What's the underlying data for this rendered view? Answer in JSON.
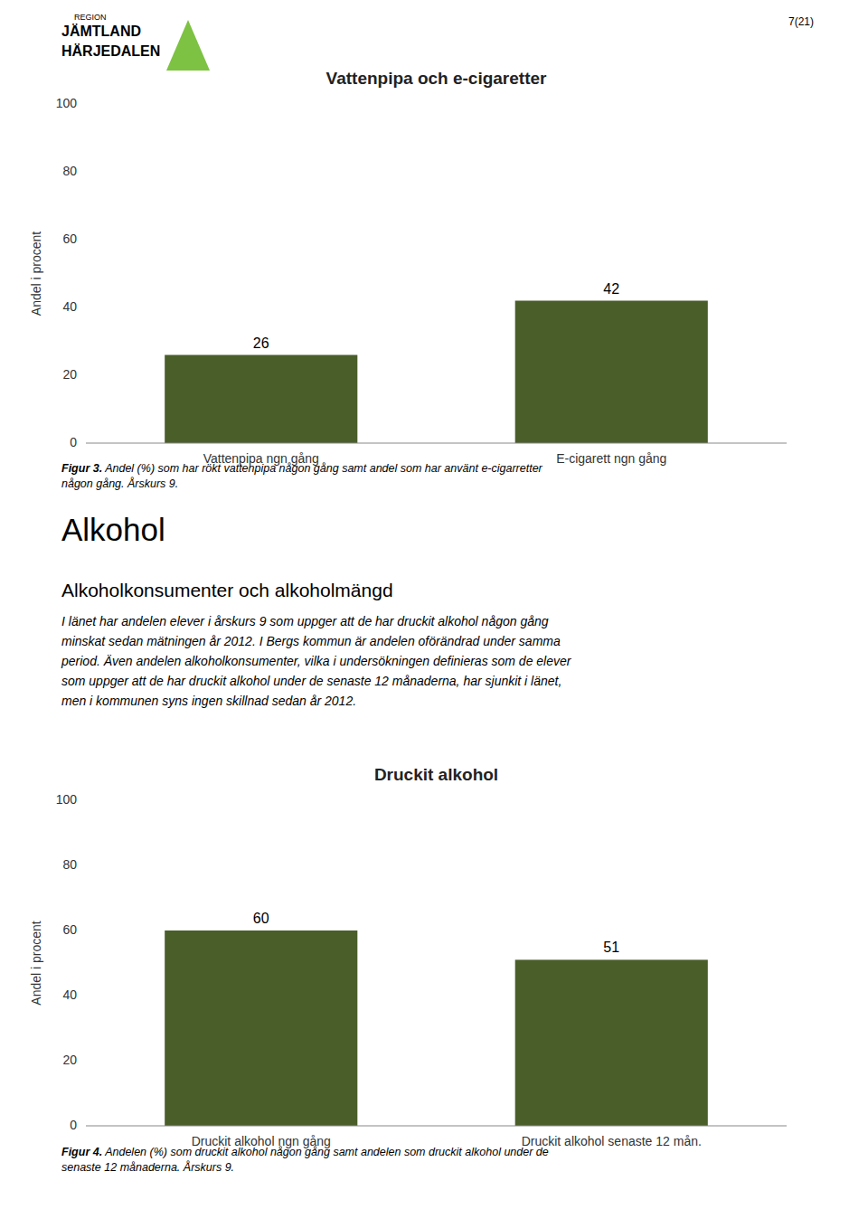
{
  "chart_data": [
    {
      "type": "bar",
      "title": "Vattenpipa och e-cigaretter",
      "categories": [
        "Vattenpipa ngn gång",
        "E-cigarett ngn gång"
      ],
      "values": [
        26,
        42
      ],
      "color": "#4a5e2a",
      "ylabel": "Andel i procent",
      "ylim": [
        0,
        100
      ],
      "yticks": [
        0,
        20,
        40,
        60,
        80,
        100
      ],
      "grid": false,
      "data_labels": true
    },
    {
      "type": "bar",
      "title": "Druckit alkohol",
      "categories": [
        "Druckit alkohol ngn gång",
        "Druckit alkohol senaste 12 mån."
      ],
      "values": [
        60,
        51
      ],
      "color": "#4a5e2a",
      "ylabel": "Andel i procent",
      "ylim": [
        0,
        100
      ],
      "yticks": [
        0,
        20,
        40,
        60,
        80,
        100
      ],
      "grid": false,
      "data_labels": true
    }
  ],
  "captions": [
    {
      "label": "Figur 3.",
      "text": " Andel (%) som har rökt vattenpipa någon gång samt andel som har använt e-cigarretter\nnågon gång. Årskurs 9."
    },
    {
      "label": "Figur 4.",
      "text": " Andelen (%) som druckit alkohol någon gång samt andelen som druckit alkohol under de\nsenaste 12 månaderna. Årskurs 9."
    }
  ],
  "header": "Alkohol",
  "subheader": "Alkoholkonsumenter och alkoholmängd",
  "body_text": "I länet har andelen elever i årskurs 9 som uppger att de har druckit alkohol någon gång\nminskat sedan mätningen år 2012. I Bergs kommun är andelen oförändrad under samma\nperiod. Även andelen alkoholkonsumenter, vilka i undersökningen definieras som de elever\nsom uppger att de har druckit alkohol under de senaste 12 månaderna, har sjunkit i länet,\nmen i kommunen syns ingen skillnad sedan år 2012.",
  "page_number": "7(21)",
  "logo": {
    "lines": [
      "REGION",
      "JÄMTLAND",
      "HÄRJEDALEN"
    ],
    "color": "#7dc242"
  }
}
